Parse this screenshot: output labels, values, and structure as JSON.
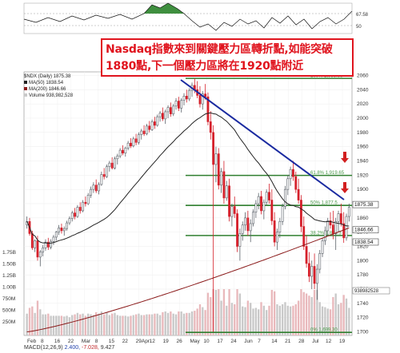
{
  "note": {
    "line1": "Nasdaq指數來到關鍵壓力區轉折點,如能突破",
    "line2": "1880點,下一個壓力區將在1920點附近"
  },
  "legend": {
    "title": "$NDX (Daily) 1875.38",
    "ma50": "MA(50) 1838.54",
    "ma200": "MA(200) 1846.66",
    "volume": "Volume 938,982,528"
  },
  "macd": {
    "label": "MACD(12,26,9)",
    "v1": "2.400,",
    "v2": "-7.028,",
    "v3": "9.427"
  },
  "colors": {
    "up": "#5a6068",
    "down": "#d5202b",
    "volume": "#c9c9c9",
    "ma50": "#222222",
    "ma200": "#8a1a1a",
    "trendline": "#1a2aa0",
    "support": "#2f7f2f",
    "fib": "#4a9a4a",
    "arrow": "#d21f1f"
  },
  "chart_data": {
    "type": "candlestick",
    "y_ticks": [
      "2060",
      "2040",
      "2020",
      "2000",
      "1980",
      "1960",
      "1940",
      "1920",
      "1900",
      "1880",
      "1860",
      "1840",
      "1820",
      "1800",
      "1780",
      "1760",
      "1740",
      "1720",
      "1700"
    ],
    "ylim": [
      1695,
      2065
    ],
    "volume_ticks": [
      "1.75B",
      "1.50B",
      "1.25B",
      "1.00B",
      "750M",
      "500M",
      "250M"
    ],
    "x_ticks": [
      "Feb",
      "8",
      "16",
      "22",
      "Mar",
      "8",
      "15",
      "22",
      "29Apr",
      "12",
      "19",
      "26",
      "May",
      "10",
      "17",
      "24",
      "Jun",
      "7",
      "14",
      "21",
      "28",
      "Jul",
      "12",
      "19"
    ],
    "price_labels": [
      {
        "text": "1875.38",
        "value": 1875.38
      },
      {
        "text": "1846.66",
        "value": 1846.66
      },
      {
        "text": "1838.54",
        "value": 1838.54
      }
    ],
    "fib_levels": [
      {
        "label": "100% 2,055.88",
        "value": 2055.88
      },
      {
        "label": "61.8% 1,919.65",
        "value": 1919.65
      },
      {
        "label": "50% 1,877.5",
        "value": 1877.5
      },
      {
        "label": "38.2% 1,835.3",
        "value": 1835.3
      },
      {
        "label": "0% 1,699.30",
        "value": 1699.3
      }
    ],
    "rsi_ticks": [
      "67.58",
      "50"
    ],
    "volume_label": "938982528",
    "annotations": [
      "pink arrows near 1920 and 1880"
    ],
    "grid": true,
    "candles": [
      [
        1850,
        1862,
        1845,
        1855
      ],
      [
        1855,
        1860,
        1835,
        1838
      ],
      [
        1838,
        1842,
        1815,
        1818
      ],
      [
        1818,
        1830,
        1812,
        1828
      ],
      [
        1828,
        1835,
        1800,
        1805
      ],
      [
        1805,
        1815,
        1792,
        1812
      ],
      [
        1812,
        1822,
        1806,
        1818
      ],
      [
        1818,
        1830,
        1814,
        1826
      ],
      [
        1826,
        1832,
        1815,
        1819
      ],
      [
        1819,
        1830,
        1816,
        1827
      ],
      [
        1827,
        1836,
        1822,
        1833
      ],
      [
        1833,
        1842,
        1828,
        1840
      ],
      [
        1840,
        1850,
        1836,
        1846
      ],
      [
        1846,
        1852,
        1838,
        1842
      ],
      [
        1842,
        1848,
        1835,
        1845
      ],
      [
        1845,
        1856,
        1842,
        1853
      ],
      [
        1853,
        1862,
        1850,
        1859
      ],
      [
        1859,
        1870,
        1855,
        1867
      ],
      [
        1867,
        1874,
        1858,
        1862
      ],
      [
        1862,
        1878,
        1860,
        1875
      ],
      [
        1875,
        1882,
        1866,
        1870
      ],
      [
        1870,
        1885,
        1868,
        1882
      ],
      [
        1882,
        1890,
        1876,
        1880
      ],
      [
        1880,
        1895,
        1878,
        1892
      ],
      [
        1892,
        1904,
        1888,
        1900
      ],
      [
        1900,
        1910,
        1895,
        1906
      ],
      [
        1906,
        1914,
        1895,
        1898
      ],
      [
        1898,
        1910,
        1893,
        1907
      ],
      [
        1907,
        1925,
        1905,
        1921
      ],
      [
        1921,
        1930,
        1914,
        1918
      ],
      [
        1918,
        1935,
        1916,
        1932
      ],
      [
        1932,
        1940,
        1925,
        1937
      ],
      [
        1937,
        1945,
        1928,
        1930
      ],
      [
        1930,
        1946,
        1928,
        1943
      ],
      [
        1943,
        1950,
        1935,
        1947
      ],
      [
        1947,
        1958,
        1944,
        1955
      ],
      [
        1955,
        1962,
        1948,
        1951
      ],
      [
        1951,
        1960,
        1946,
        1958
      ],
      [
        1958,
        1968,
        1955,
        1965
      ],
      [
        1965,
        1972,
        1958,
        1961
      ],
      [
        1961,
        1974,
        1959,
        1971
      ],
      [
        1971,
        1978,
        1962,
        1966
      ],
      [
        1966,
        1980,
        1963,
        1977
      ],
      [
        1977,
        1985,
        1970,
        1982
      ],
      [
        1982,
        1990,
        1975,
        1978
      ],
      [
        1978,
        1992,
        1976,
        1989
      ],
      [
        1989,
        1996,
        1980,
        1984
      ],
      [
        1984,
        1998,
        1982,
        1995
      ],
      [
        1995,
        2002,
        1985,
        1990
      ],
      [
        1990,
        2005,
        1988,
        2002
      ],
      [
        2002,
        2010,
        1995,
        2007
      ],
      [
        2007,
        2015,
        1996,
        1999
      ],
      [
        1999,
        2012,
        1992,
        2009
      ],
      [
        2009,
        2018,
        2000,
        2015
      ],
      [
        2015,
        2022,
        2002,
        2006
      ],
      [
        2006,
        2020,
        2003,
        2017
      ],
      [
        2017,
        2028,
        2012,
        2024
      ],
      [
        2024,
        2030,
        2010,
        2014
      ],
      [
        2014,
        2028,
        2008,
        2025
      ],
      [
        2025,
        2035,
        2018,
        2031
      ],
      [
        2031,
        2040,
        2022,
        2027
      ],
      [
        2027,
        2042,
        2024,
        2039
      ],
      [
        2039,
        2050,
        2030,
        2046
      ],
      [
        2046,
        2056,
        2035,
        2040
      ],
      [
        2040,
        2052,
        2028,
        2032
      ],
      [
        2032,
        2045,
        2015,
        2020
      ],
      [
        2020,
        2038,
        2012,
        2034
      ],
      [
        2034,
        2048,
        2026,
        2030
      ],
      [
        2030,
        2036,
        1990,
        1995
      ],
      [
        1995,
        2010,
        1970,
        1980
      ],
      [
        1980,
        1990,
        1700,
        1935
      ],
      [
        1935,
        1960,
        1910,
        1950
      ],
      [
        1950,
        1958,
        1900,
        1906
      ],
      [
        1906,
        1930,
        1895,
        1925
      ],
      [
        1925,
        1940,
        1880,
        1888
      ],
      [
        1888,
        1912,
        1884,
        1905
      ],
      [
        1905,
        1915,
        1855,
        1862
      ],
      [
        1862,
        1880,
        1848,
        1876
      ],
      [
        1876,
        1890,
        1860,
        1866
      ],
      [
        1866,
        1872,
        1812,
        1820
      ],
      [
        1820,
        1845,
        1800,
        1838
      ],
      [
        1838,
        1855,
        1828,
        1850
      ],
      [
        1850,
        1868,
        1842,
        1860
      ],
      [
        1860,
        1870,
        1835,
        1842
      ],
      [
        1842,
        1858,
        1826,
        1852
      ],
      [
        1852,
        1872,
        1848,
        1868
      ],
      [
        1868,
        1885,
        1860,
        1880
      ],
      [
        1880,
        1895,
        1872,
        1890
      ],
      [
        1890,
        1898,
        1865,
        1870
      ],
      [
        1870,
        1886,
        1858,
        1882
      ],
      [
        1882,
        1900,
        1878,
        1896
      ],
      [
        1896,
        1908,
        1880,
        1885
      ],
      [
        1885,
        1900,
        1850,
        1856
      ],
      [
        1856,
        1868,
        1820,
        1826
      ],
      [
        1826,
        1845,
        1815,
        1840
      ],
      [
        1840,
        1860,
        1832,
        1855
      ],
      [
        1855,
        1880,
        1850,
        1876
      ],
      [
        1876,
        1905,
        1872,
        1900
      ],
      [
        1900,
        1920,
        1892,
        1915
      ],
      [
        1915,
        1932,
        1905,
        1928
      ],
      [
        1928,
        1940,
        1912,
        1918
      ],
      [
        1918,
        1925,
        1895,
        1900
      ],
      [
        1900,
        1915,
        1880,
        1885
      ],
      [
        1885,
        1892,
        1840,
        1848
      ],
      [
        1848,
        1862,
        1815,
        1820
      ],
      [
        1820,
        1835,
        1790,
        1796
      ],
      [
        1796,
        1812,
        1770,
        1778
      ],
      [
        1778,
        1800,
        1760,
        1792
      ],
      [
        1792,
        1810,
        1760,
        1768
      ],
      [
        1768,
        1795,
        1745,
        1788
      ],
      [
        1788,
        1815,
        1782,
        1810
      ],
      [
        1810,
        1832,
        1805,
        1828
      ],
      [
        1828,
        1848,
        1822,
        1842
      ],
      [
        1842,
        1860,
        1836,
        1856
      ],
      [
        1856,
        1868,
        1845,
        1850
      ],
      [
        1850,
        1870,
        1830,
        1838
      ],
      [
        1838,
        1860,
        1815,
        1855
      ],
      [
        1855,
        1870,
        1840,
        1866
      ],
      [
        1866,
        1880,
        1848,
        1852
      ],
      [
        1852,
        1868,
        1825,
        1832
      ],
      [
        1832,
        1866,
        1828,
        1862
      ],
      [
        1862,
        1880,
        1855,
        1875
      ]
    ]
  }
}
